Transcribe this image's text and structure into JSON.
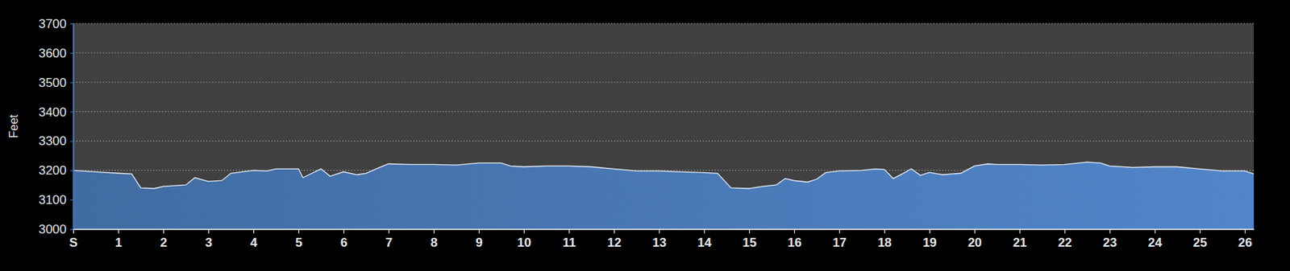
{
  "chart_data": {
    "type": "area",
    "y_label": "Feet",
    "x": [
      0,
      0.5,
      1.0,
      1.3,
      1.5,
      1.8,
      2.0,
      2.5,
      2.7,
      3.0,
      3.3,
      3.5,
      4.0,
      4.3,
      4.5,
      5.0,
      5.1,
      5.3,
      5.5,
      5.7,
      6.0,
      6.3,
      6.5,
      6.8,
      7.0,
      7.5,
      8.0,
      8.5,
      9.0,
      9.5,
      9.7,
      10.0,
      10.5,
      11.0,
      11.5,
      12.0,
      12.5,
      13.0,
      13.5,
      14.0,
      14.3,
      14.6,
      15.0,
      15.3,
      15.6,
      15.8,
      16.0,
      16.3,
      16.5,
      16.7,
      17.0,
      17.5,
      17.8,
      18.0,
      18.2,
      18.4,
      18.6,
      18.8,
      19.0,
      19.3,
      19.5,
      19.7,
      20.0,
      20.3,
      20.5,
      21.0,
      21.5,
      22.0,
      22.5,
      22.8,
      23.0,
      23.5,
      24.0,
      24.5,
      25.0,
      25.5,
      26.0,
      26.2
    ],
    "values": [
      3200,
      3195,
      3190,
      3188,
      3140,
      3138,
      3145,
      3150,
      3175,
      3162,
      3165,
      3190,
      3200,
      3198,
      3205,
      3205,
      3175,
      3190,
      3205,
      3180,
      3195,
      3185,
      3190,
      3210,
      3222,
      3220,
      3220,
      3218,
      3225,
      3225,
      3215,
      3212,
      3215,
      3215,
      3212,
      3205,
      3198,
      3198,
      3195,
      3192,
      3190,
      3140,
      3138,
      3145,
      3150,
      3172,
      3165,
      3160,
      3170,
      3192,
      3198,
      3200,
      3205,
      3203,
      3172,
      3188,
      3205,
      3183,
      3193,
      3185,
      3188,
      3190,
      3215,
      3222,
      3220,
      3220,
      3218,
      3220,
      3228,
      3225,
      3215,
      3210,
      3212,
      3212,
      3205,
      3198,
      3198,
      3188
    ],
    "color": "#4a7ab8",
    "xlim": [
      0,
      26.2
    ],
    "xticks": [
      {
        "value": 0,
        "label": "S"
      },
      1,
      2,
      3,
      4,
      5,
      6,
      7,
      8,
      9,
      10,
      11,
      12,
      13,
      14,
      15,
      16,
      17,
      18,
      19,
      20,
      21,
      22,
      23,
      24,
      25,
      26
    ],
    "ylim": [
      3000,
      3700
    ],
    "yticks": [
      3000,
      3100,
      3200,
      3300,
      3400,
      3500,
      3600,
      3700
    ],
    "grid": true
  }
}
